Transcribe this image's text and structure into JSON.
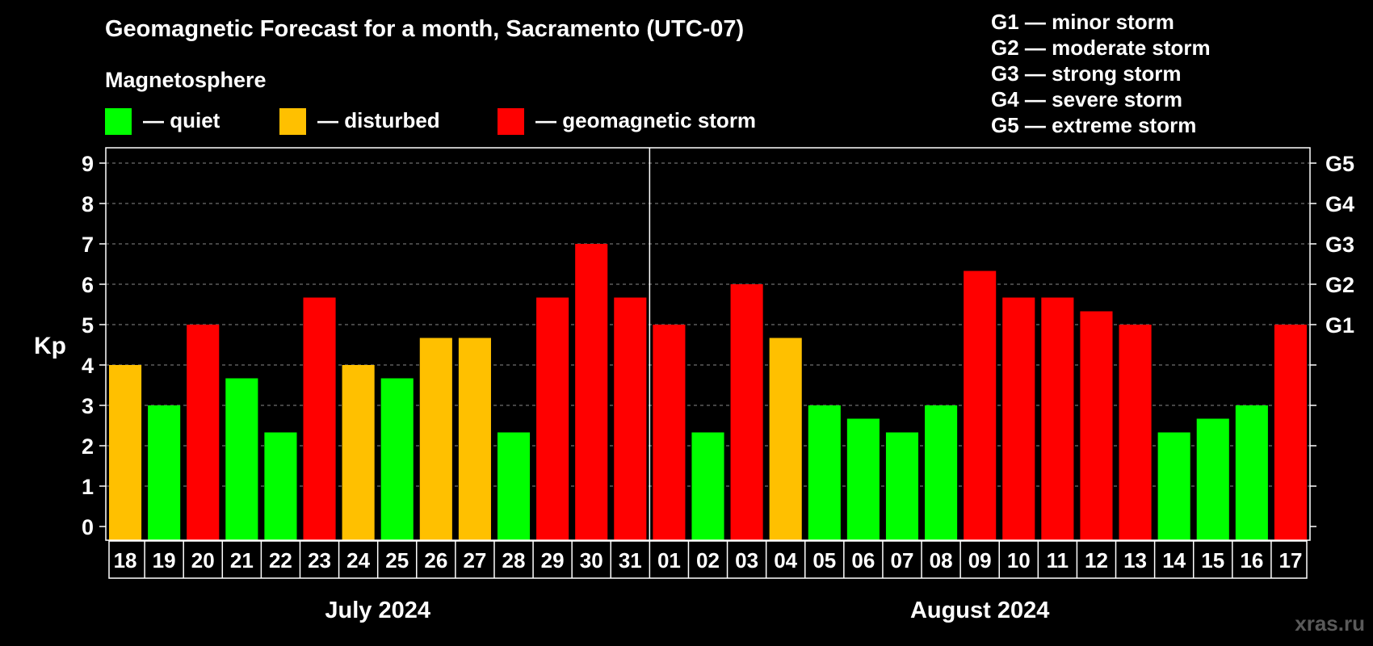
{
  "chart_data": {
    "type": "bar",
    "title": "Geomagnetic Forecast for a month, Sacramento (UTC-07)",
    "ylabel": "Kp",
    "ylim": [
      0,
      9
    ],
    "yticks": [
      "0",
      "1",
      "2",
      "3",
      "4",
      "5",
      "6",
      "7",
      "8",
      "9"
    ],
    "grid": true,
    "legend": {
      "title": "Magnetosphere",
      "entries": [
        {
          "label": "— quiet",
          "color": "#00ff00"
        },
        {
          "label": "— disturbed",
          "color": "#ffc000"
        },
        {
          "label": "— geomagnetic storm",
          "color": "#ff0000"
        }
      ]
    },
    "storm_levels": [
      {
        "label": "G1",
        "kp": 5
      },
      {
        "label": "G2",
        "kp": 6
      },
      {
        "label": "G3",
        "kp": 7
      },
      {
        "label": "G4",
        "kp": 8
      },
      {
        "label": "G5",
        "kp": 9
      }
    ],
    "storm_key": [
      "G1 — minor storm",
      "G2 — moderate storm",
      "G3 — strong storm",
      "G4 — severe storm",
      "G5 — extreme storm"
    ],
    "months": [
      {
        "label": "July 2024",
        "days": 14
      },
      {
        "label": "August 2024",
        "days": 17
      }
    ],
    "categories": [
      "18",
      "19",
      "20",
      "21",
      "22",
      "23",
      "24",
      "25",
      "26",
      "27",
      "28",
      "29",
      "30",
      "31",
      "01",
      "02",
      "03",
      "04",
      "05",
      "06",
      "07",
      "08",
      "09",
      "10",
      "11",
      "12",
      "13",
      "14",
      "15",
      "16",
      "17"
    ],
    "values": [
      4,
      3,
      5,
      3.67,
      2.33,
      5.67,
      4,
      3.67,
      4.67,
      4.67,
      2.33,
      5.67,
      7,
      5.67,
      5,
      2.33,
      6,
      4.67,
      3,
      2.67,
      2.33,
      3,
      6.33,
      5.67,
      5.67,
      5.33,
      5,
      2.33,
      2.67,
      3,
      5
    ],
    "colors": {
      "quiet": "#00ff00",
      "disturbed": "#ffc000",
      "storm": "#ff0000",
      "frame": "#ffffff",
      "grid": "#8a8a8a"
    }
  },
  "watermark": "xras.ru"
}
